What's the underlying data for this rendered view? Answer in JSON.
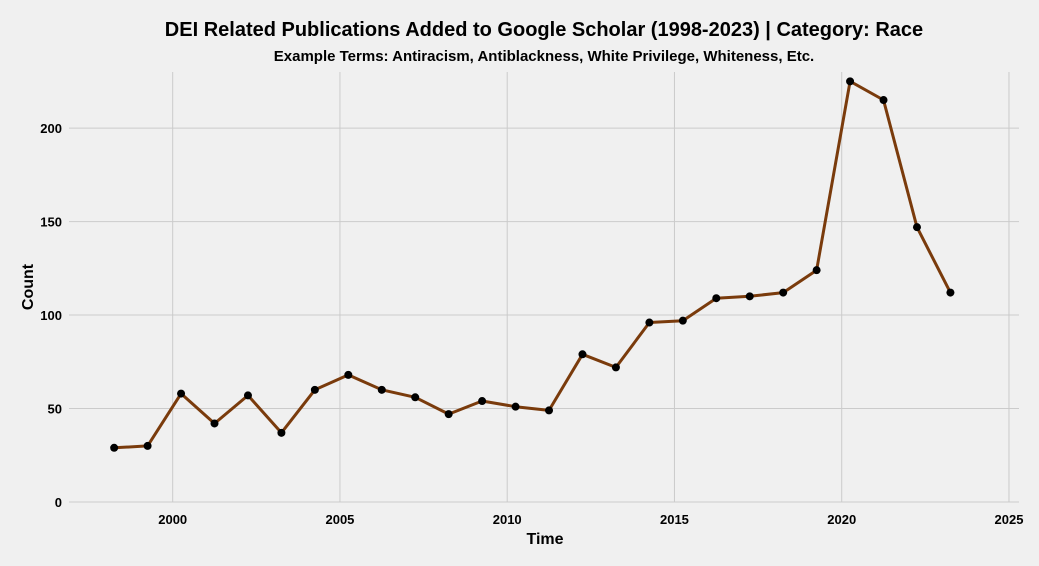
{
  "chart_data": {
    "type": "line",
    "title": "DEI Related Publications Added to Google Scholar (1998-2023) | Category: Race",
    "subtitle": "Example Terms: Antiracism, Antiblackness, White Privilege, Whiteness, Etc.",
    "xlabel": "Time",
    "ylabel": "Count",
    "xlim": [
      1996.9,
      2025.3
    ],
    "ylim": [
      0,
      230
    ],
    "x_ticks": [
      2000,
      2005,
      2010,
      2015,
      2020,
      2025
    ],
    "x_tick_labels": [
      "2000",
      "2005",
      "2010",
      "2015",
      "2020",
      "2025"
    ],
    "y_ticks": [
      0,
      50,
      100,
      150,
      200
    ],
    "y_tick_labels": [
      "0",
      "50",
      "100",
      "150",
      "200"
    ],
    "grid": true,
    "line_color": "#7a3b0c",
    "marker_color": "#000000",
    "series": [
      {
        "x": [
          "1998-04",
          "1999-04",
          "2000-04",
          "2001-04",
          "2002-04",
          "2003-04",
          "2004-04",
          "2005-04",
          "2006-04",
          "2007-04",
          "2008-04",
          "2009-04",
          "2010-04",
          "2011-04",
          "2012-04",
          "2013-04",
          "2014-04",
          "2015-04",
          "2016-04",
          "2017-04",
          "2018-04",
          "2019-04",
          "2020-04",
          "2021-04",
          "2022-04",
          "2023-04"
        ],
        "y": [
          29,
          30,
          58,
          42,
          57,
          37,
          60,
          68,
          60,
          56,
          47,
          54,
          51,
          49,
          79,
          72,
          96,
          97,
          109,
          110,
          112,
          124,
          225,
          215,
          147,
          112
        ]
      }
    ]
  }
}
